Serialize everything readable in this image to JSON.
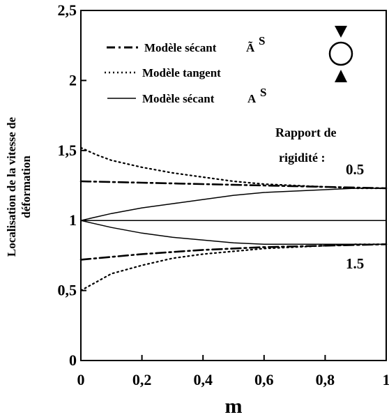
{
  "chart_data": {
    "type": "line",
    "xlabel": "m",
    "ylabel_line1": "Localisation de la vitesse de",
    "ylabel_line2": "déformation",
    "xlim": [
      0,
      1
    ],
    "ylim": [
      0,
      2.5
    ],
    "x_ticks": [
      0,
      0.2,
      0.4,
      0.6,
      0.8,
      1
    ],
    "x_tick_labels": [
      "0",
      "0,2",
      "0,4",
      "0,6",
      "0,8",
      "1"
    ],
    "y_ticks": [
      0,
      0.5,
      1,
      1.5,
      2,
      2.5
    ],
    "y_tick_labels": [
      "0",
      "0,5",
      "1",
      "1,5",
      "2",
      "2,5"
    ],
    "grid": false,
    "legend": {
      "position": "top-left",
      "entries": [
        {
          "label": "Modèle sécant",
          "style": "dashdot",
          "symbol": "Ã",
          "superscript": "S"
        },
        {
          "label": "Modèle tangent",
          "style": "dotted",
          "symbol": "",
          "superscript": ""
        },
        {
          "label": "Modèle sécant",
          "style": "solid",
          "symbol": "A",
          "superscript": "S"
        }
      ]
    },
    "annotations": {
      "ratio_line1": "Rapport de",
      "ratio_line2": "rigidité :",
      "ratio_high": "0.5",
      "ratio_low": "1.5"
    },
    "series": [
      {
        "style": "dashdot",
        "group": "0.5",
        "x": [
          0,
          0.2,
          0.4,
          0.6,
          0.8,
          1.0
        ],
        "y": [
          1.28,
          1.27,
          1.26,
          1.25,
          1.24,
          1.23
        ]
      },
      {
        "style": "dotted",
        "group": "0.5",
        "x": [
          0,
          0.05,
          0.1,
          0.2,
          0.3,
          0.4,
          0.5,
          0.6,
          0.7,
          0.8,
          0.9,
          1.0
        ],
        "y": [
          1.52,
          1.47,
          1.43,
          1.38,
          1.34,
          1.31,
          1.28,
          1.26,
          1.25,
          1.24,
          1.23,
          1.23
        ]
      },
      {
        "style": "solid",
        "group": "0.5",
        "x": [
          0,
          0.1,
          0.2,
          0.3,
          0.4,
          0.5,
          0.6,
          0.7,
          0.8,
          0.9,
          1.0
        ],
        "y": [
          1.0,
          1.05,
          1.09,
          1.12,
          1.15,
          1.18,
          1.2,
          1.21,
          1.22,
          1.23,
          1.23
        ]
      },
      {
        "style": "solid",
        "group": "1",
        "x": [
          0,
          1.0
        ],
        "y": [
          1.0,
          1.0
        ]
      },
      {
        "style": "solid",
        "group": "1.5",
        "x": [
          0,
          0.1,
          0.2,
          0.3,
          0.4,
          0.5,
          0.6,
          0.7,
          0.8,
          0.9,
          1.0
        ],
        "y": [
          1.0,
          0.95,
          0.91,
          0.88,
          0.86,
          0.84,
          0.83,
          0.83,
          0.83,
          0.83,
          0.83
        ]
      },
      {
        "style": "dashdot",
        "group": "1.5",
        "x": [
          0,
          0.2,
          0.4,
          0.6,
          0.8,
          1.0
        ],
        "y": [
          0.72,
          0.76,
          0.79,
          0.81,
          0.82,
          0.83
        ]
      },
      {
        "style": "dotted",
        "group": "1.5",
        "x": [
          0,
          0.05,
          0.1,
          0.2,
          0.3,
          0.4,
          0.5,
          0.6,
          0.7,
          0.8,
          0.9,
          1.0
        ],
        "y": [
          0.5,
          0.56,
          0.62,
          0.68,
          0.73,
          0.76,
          0.78,
          0.8,
          0.81,
          0.82,
          0.83,
          0.83
        ]
      }
    ]
  }
}
